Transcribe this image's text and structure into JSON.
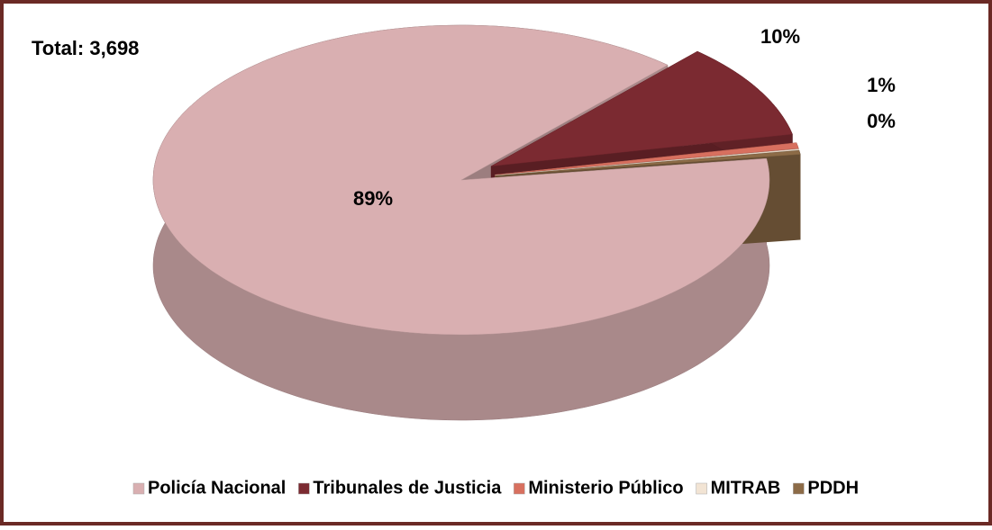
{
  "chart_data": {
    "type": "pie3d",
    "annotation": "Total: 3,698",
    "categories": [
      "Policía Nacional",
      "Tribunales de Justicia",
      "Ministerio Público",
      "MITRAB",
      "PDDH"
    ],
    "values": [
      88.9,
      10,
      0.6,
      0.1,
      0.4
    ],
    "value_labels": [
      "89%",
      "10%",
      "1%",
      null,
      "0%"
    ],
    "colors": [
      "#d9afb1",
      "#7b2a31",
      "#d8705f",
      "#f2e4d4",
      "#8c6b47"
    ],
    "legend": "bottom"
  }
}
